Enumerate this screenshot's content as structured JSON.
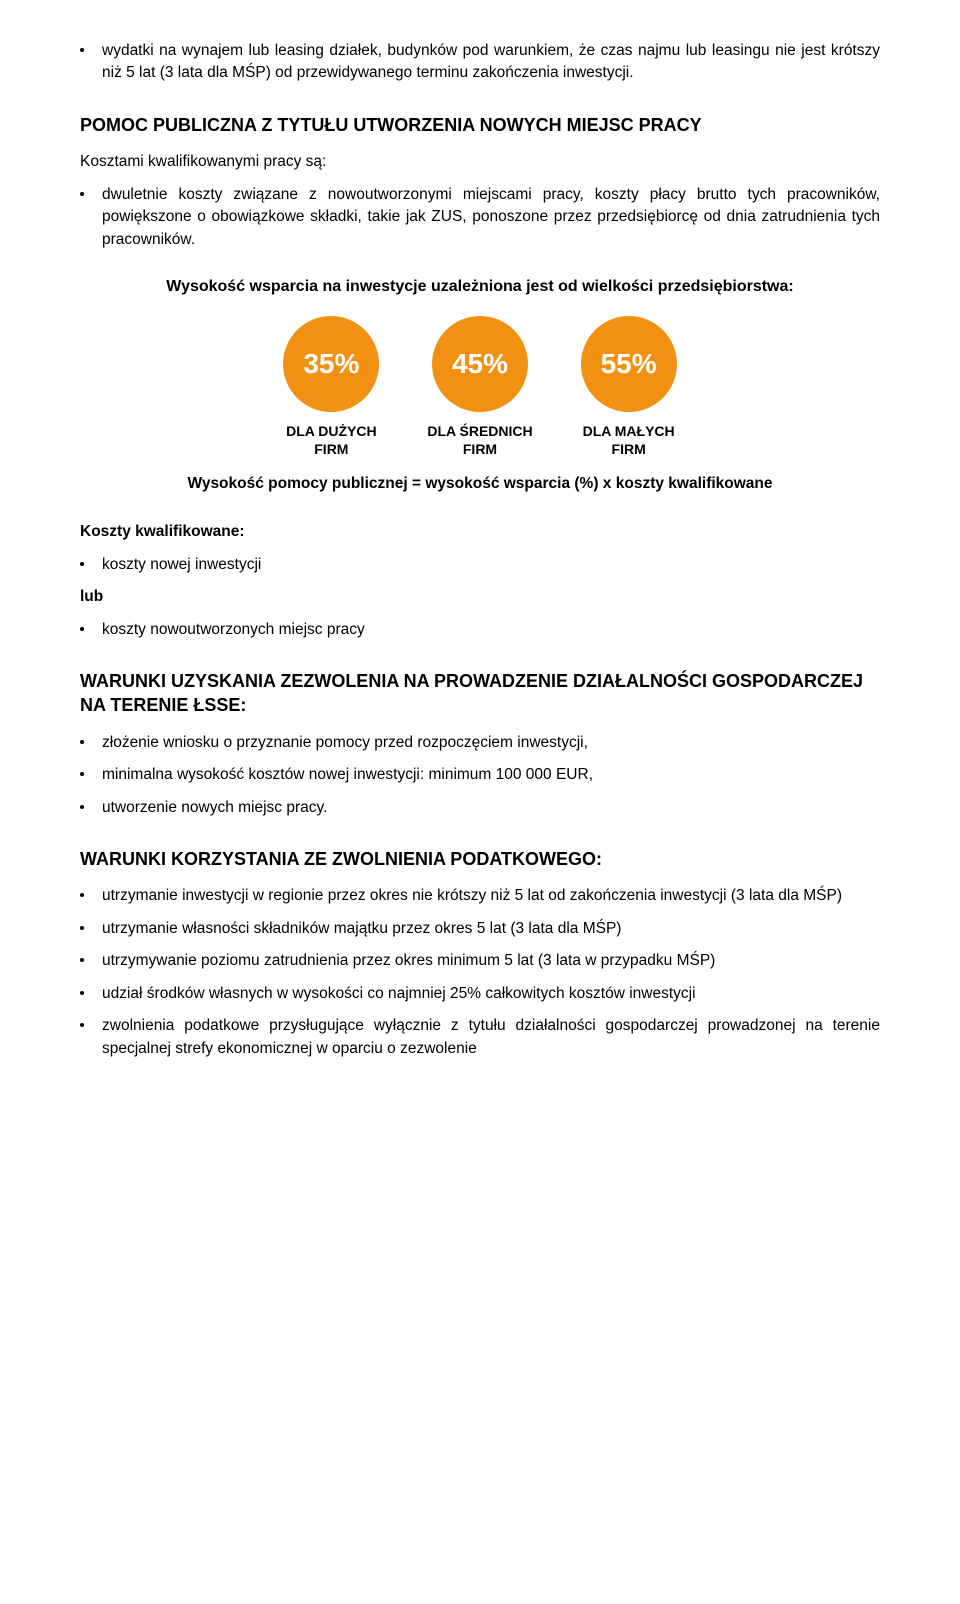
{
  "intro_bullet": "wydatki na wynajem lub leasing działek, budynków pod warunkiem, że czas najmu lub leasingu nie jest krótszy niż 5 lat (3 lata dla MŚP) od przewidywanego terminu zakończenia inwestycji.",
  "section1": {
    "title": "POMOC PUBLICZNA Z TYTUŁU UTWORZENIA NOWYCH MIEJSC PRACY",
    "lead": "Kosztami kwalifikowanymi pracy są:",
    "bullet": "dwuletnie koszty związane z nowoutworzonymi miejscami pracy, koszty płacy brutto tych pracowników, powiększone o obowiązkowe składki, takie jak ZUS, ponoszone przez przedsiębiorcę od dnia zatrudnienia tych pracowników."
  },
  "support": {
    "heading": "Wysokość wsparcia na inwestycje uzależniona jest od wielkości przedsiębiorstwa:",
    "circles": [
      {
        "value": "35%",
        "label_line1": "DLA DUŻYCH",
        "label_line2": "FIRM",
        "color": "#f29111"
      },
      {
        "value": "45%",
        "label_line1": "DLA ŚREDNICH",
        "label_line2": "FIRM",
        "color": "#f29111"
      },
      {
        "value": "55%",
        "label_line1": "DLA MAŁYCH",
        "label_line2": "FIRM",
        "color": "#f29111"
      }
    ],
    "formula": "Wysokość pomocy publicznej = wysokość wsparcia (%) x koszty kwalifikowane"
  },
  "koszty": {
    "label": "Koszty kwalifikowane:",
    "bullet1": "koszty nowej inwestycji",
    "lub": "lub",
    "bullet2": "koszty nowoutworzonych miejsc pracy"
  },
  "warunki_zezw": {
    "title": "WARUNKI UZYSKANIA ZEZWOLENIA NA PROWADZENIE DZIAŁALNOŚCI GOSPODARCZEJ NA TERENIE ŁSSE:",
    "items": [
      "złożenie wniosku o przyznanie pomocy przed rozpoczęciem inwestycji,",
      "minimalna wysokość kosztów nowej inwestycji: minimum 100 000 EUR,",
      "utworzenie nowych miejsc pracy."
    ]
  },
  "warunki_zwol": {
    "title": "WARUNKI KORZYSTANIA ZE ZWOLNIENIA PODATKOWEGO:",
    "items": [
      "utrzymanie inwestycji w regionie przez okres nie krótszy niż 5 lat od zakończenia inwestycji (3 lata dla MŚP)",
      "utrzymanie własności składników majątku przez okres 5 lat (3 lata dla MŚP)",
      "utrzymywanie poziomu zatrudnienia przez okres minimum 5 lat (3 lata w przypadku MŚP)",
      "udział środków własnych w wysokości co najmniej 25% całkowitych kosztów inwestycji",
      "zwolnienia podatkowe przysługujące wyłącznie z tytułu działalności gospodarczej prowadzonej na terenie specjalnej strefy ekonomicznej w oparciu o zezwolenie"
    ]
  }
}
